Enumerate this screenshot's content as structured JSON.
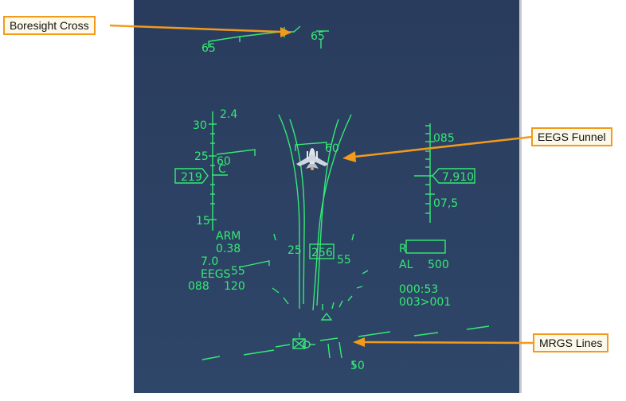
{
  "callouts": {
    "boresight": "Boresight Cross",
    "funnel": "EEGS Funnel",
    "mrgs": "MRGS Lines"
  },
  "hud": {
    "heading_left": "65",
    "heading_right": "65",
    "altitude_scale": {
      "top": "085",
      "bottom": "07,5"
    },
    "altitude_box": "7,910",
    "speed_box": "219",
    "pitch_labels": {
      "p30": "30",
      "p25": "25",
      "p15": "15"
    },
    "g_load": "2.4",
    "funnel_label": "60",
    "ladder_small": {
      "a": "60",
      "b": "C"
    },
    "arm_label": "ARM",
    "mach": "0.38",
    "g_max": "7.0",
    "eegs_mode": "EEGS",
    "eegs_value": "55",
    "bottom_left": {
      "a": "088",
      "b": "120"
    },
    "range_left": "25",
    "range_box": "256",
    "range_right": "55",
    "radar_label": "R",
    "al_label": "AL",
    "al_value": "500",
    "time_line1": "000:53",
    "time_line2": "003>001",
    "bottom_tick": "50"
  },
  "colors": {
    "hud_green": "#34ea74",
    "sky": "#2b3f62",
    "callout_border": "#f29a1a",
    "callout_bg": "#fdf9ea"
  }
}
